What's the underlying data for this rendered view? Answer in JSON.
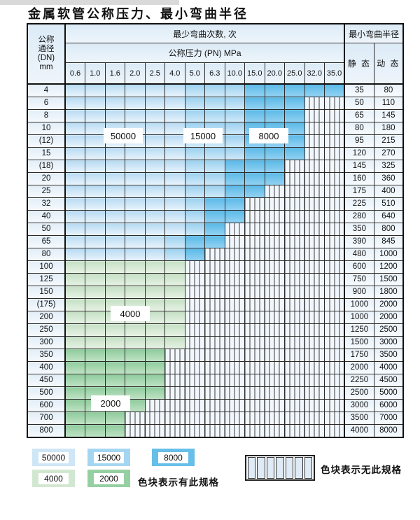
{
  "title": "金属软管公称压力、最小弯曲半径",
  "table": {
    "header": {
      "dn_lines": [
        "公称",
        "通径",
        "(DN)",
        "mm"
      ],
      "bend_times_label": "最少弯曲次数, 次",
      "pressure_label": "公称压力 (PN) MPa",
      "radius_label": "最小弯曲半径",
      "static_label": "静 态",
      "dynamic_label": "动 态",
      "pressure_columns": [
        "0.6",
        "1.0",
        "1.6",
        "2.0",
        "2.5",
        "4.0",
        "5.0",
        "6.3",
        "10.0",
        "15.0",
        "20.0",
        "25.0",
        "32.0",
        "35.0"
      ]
    },
    "band_codes": {
      "L": "50000",
      "M": "15000",
      "D": "8000",
      "G": "4000",
      "E": "2000",
      "N": "无此规格"
    },
    "rows": [
      {
        "dn": "4",
        "bands": "LLLLLLMMMDDDDD",
        "static": "35",
        "dynamic": "80"
      },
      {
        "dn": "6",
        "bands": "LLLLLLMMMDDDNN",
        "static": "50",
        "dynamic": "110"
      },
      {
        "dn": "8",
        "bands": "LLLLLLMMMDDDNN",
        "static": "65",
        "dynamic": "145"
      },
      {
        "dn": "10",
        "bands": "LLLLLLMMMDDDNN",
        "static": "80",
        "dynamic": "180"
      },
      {
        "dn": "(12)",
        "bands": "LLLLLLMMMDDDNN",
        "static": "95",
        "dynamic": "215"
      },
      {
        "dn": "15",
        "bands": "LLLLLLMMMDDDNN",
        "static": "120",
        "dynamic": "270"
      },
      {
        "dn": "(18)",
        "bands": "LLLLLLMMDDDNNN",
        "static": "145",
        "dynamic": "325"
      },
      {
        "dn": "20",
        "bands": "LLLLLLMMDDDNNN",
        "static": "160",
        "dynamic": "360"
      },
      {
        "dn": "25",
        "bands": "LLLLLLMMDDNNNN",
        "static": "175",
        "dynamic": "400"
      },
      {
        "dn": "32",
        "bands": "LLLLLLMDDNNNNN",
        "static": "225",
        "dynamic": "510"
      },
      {
        "dn": "40",
        "bands": "LLLLLLMDDNNNNN",
        "static": "280",
        "dynamic": "640"
      },
      {
        "dn": "50",
        "bands": "LLLLLLMDNNNNNN",
        "static": "350",
        "dynamic": "800"
      },
      {
        "dn": "65",
        "bands": "LLLLLMDDNNNNNN",
        "static": "390",
        "dynamic": "845"
      },
      {
        "dn": "80",
        "bands": "LLLLLMDNNNNNNN",
        "static": "480",
        "dynamic": "1000"
      },
      {
        "dn": "100",
        "bands": "GGGGGGNNNNNNNN",
        "static": "600",
        "dynamic": "1200"
      },
      {
        "dn": "125",
        "bands": "GGGGGGNNNNNNNN",
        "static": "750",
        "dynamic": "1500"
      },
      {
        "dn": "150",
        "bands": "GGGGGGNNNNNNNN",
        "static": "900",
        "dynamic": "1800"
      },
      {
        "dn": "(175)",
        "bands": "GGGGGGNNNNNNNN",
        "static": "1000",
        "dynamic": "2000"
      },
      {
        "dn": "200",
        "bands": "GGGGGGNNNNNNNN",
        "static": "1000",
        "dynamic": "2000"
      },
      {
        "dn": "250",
        "bands": "GGGGGGNNNNNNNN",
        "static": "1250",
        "dynamic": "2500"
      },
      {
        "dn": "300",
        "bands": "GGGGGGNNNNNNNN",
        "static": "1500",
        "dynamic": "3000"
      },
      {
        "dn": "350",
        "bands": "EEEEENNNNNNNNN",
        "static": "1750",
        "dynamic": "3500"
      },
      {
        "dn": "400",
        "bands": "EEEEENNNNNNNNN",
        "static": "2000",
        "dynamic": "4000"
      },
      {
        "dn": "450",
        "bands": "EEEEENNNNNNNNN",
        "static": "2250",
        "dynamic": "4500"
      },
      {
        "dn": "500",
        "bands": "EEEEENNNNNNNNN",
        "static": "2500",
        "dynamic": "5000"
      },
      {
        "dn": "600",
        "bands": "EEEENNNNNNNNNN",
        "static": "3000",
        "dynamic": "6000"
      },
      {
        "dn": "700",
        "bands": "EEENNNNNNNNNNN",
        "static": "3500",
        "dynamic": "7000"
      },
      {
        "dn": "800",
        "bands": "EEENNNNNNNNNNN",
        "static": "4000",
        "dynamic": "8000"
      }
    ],
    "overlay_labels": [
      "50000",
      "15000",
      "8000",
      "4000",
      "2000"
    ]
  },
  "legend": {
    "available_blocks": [
      "50000",
      "15000",
      "8000",
      "4000",
      "2000"
    ],
    "available_text": "色块表示有此规格",
    "unavailable_text": "色块表示无此规格"
  },
  "colors": {
    "cycles_50000": "#cfe6f6",
    "cycles_15000": "#a4d6f1",
    "cycles_8000": "#66bfe8",
    "cycles_4000": "#d2e7d1",
    "cycles_2000": "#96d0a2",
    "no_spec_background": "#f1f7fc",
    "grid_line": "#2b2b2b"
  }
}
